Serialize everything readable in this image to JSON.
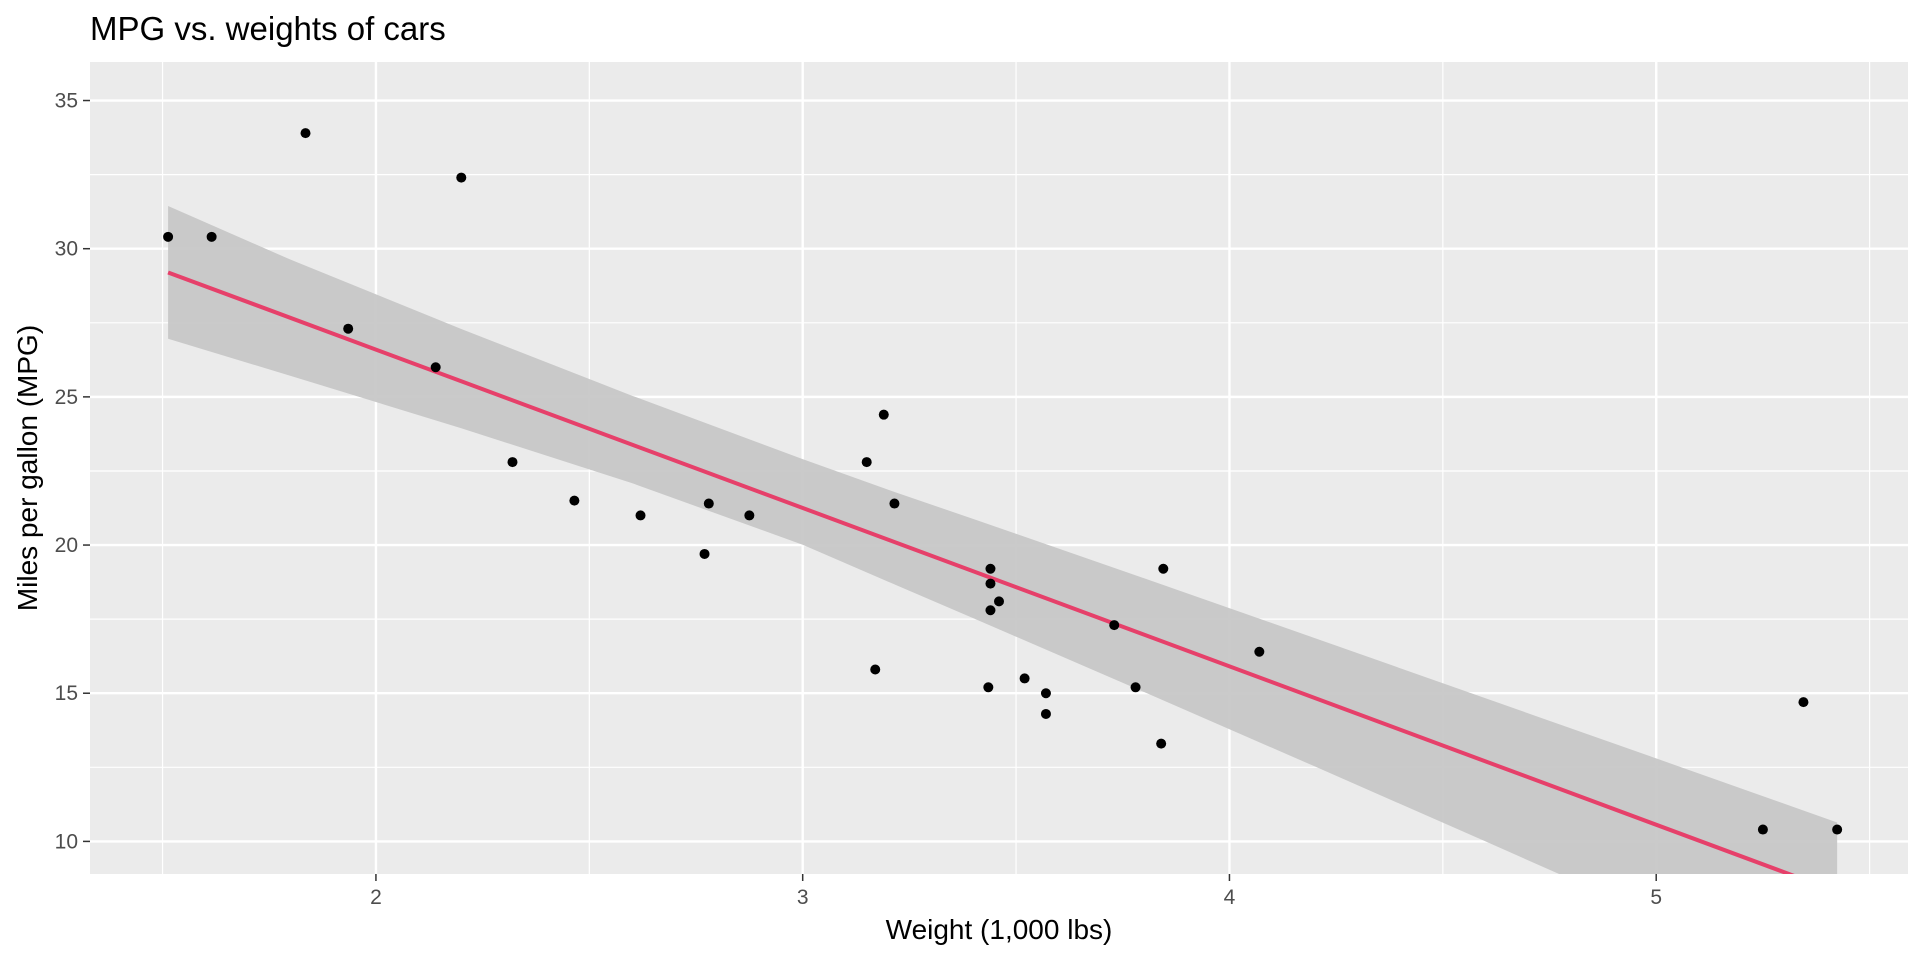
{
  "chart_data": {
    "type": "scatter",
    "title": "MPG vs. weights of cars",
    "xlabel": "Weight (1,000 lbs)",
    "ylabel": "Miles per gallon (MPG)",
    "xlim": [
      1.33,
      5.59
    ],
    "ylim": [
      8.9,
      36.3
    ],
    "x_ticks": [
      2,
      3,
      4,
      5
    ],
    "y_ticks": [
      10,
      15,
      20,
      25,
      30,
      35
    ],
    "x_tick_labels": [
      "2",
      "3",
      "4",
      "5"
    ],
    "y_tick_labels": [
      "10",
      "15",
      "20",
      "25",
      "30",
      "35"
    ],
    "x_minor_ticks": [
      1.5,
      2.5,
      3.5,
      4.5,
      5.5
    ],
    "y_minor_ticks": [
      12.5,
      17.5,
      22.5,
      27.5,
      32.5
    ],
    "grid": true,
    "legend": "none",
    "series": [
      {
        "type": "scatter",
        "x": [
          2.62,
          2.875,
          2.32,
          3.215,
          3.44,
          3.46,
          3.57,
          3.19,
          3.15,
          3.44,
          3.44,
          4.07,
          3.73,
          3.78,
          5.25,
          5.424,
          5.345,
          2.2,
          1.615,
          1.835,
          2.465,
          3.52,
          3.435,
          3.84,
          3.845,
          1.935,
          2.14,
          1.513,
          3.17,
          2.77,
          3.57,
          2.78
        ],
        "y": [
          21.0,
          21.0,
          22.8,
          21.4,
          18.7,
          18.1,
          14.3,
          24.4,
          22.8,
          19.2,
          17.8,
          16.4,
          17.3,
          15.2,
          10.4,
          10.4,
          14.7,
          32.4,
          30.4,
          33.9,
          21.5,
          15.5,
          15.2,
          13.3,
          19.2,
          27.3,
          26.0,
          30.4,
          15.8,
          19.7,
          15.0,
          21.4
        ]
      },
      {
        "type": "line",
        "method": "lm",
        "x": [
          1.513,
          5.424
        ],
        "y": [
          29.199,
          8.296
        ]
      },
      {
        "type": "area",
        "band": "confidence interval",
        "x": [
          1.513,
          1.8,
          2.2,
          2.6,
          3.0,
          3.217,
          3.4,
          3.8,
          4.2,
          4.6,
          5.0,
          5.424
        ],
        "lower": [
          26.96,
          25.71,
          23.94,
          22.09,
          20.01,
          18.66,
          17.53,
          15.04,
          12.53,
          10.0,
          7.45,
          4.73
        ],
        "upper": [
          31.44,
          29.63,
          27.29,
          25.04,
          22.9,
          21.78,
          20.88,
          18.88,
          16.86,
          14.83,
          12.8,
          10.64
        ]
      }
    ]
  },
  "colors": {
    "panel_background": "#ebebeb",
    "grid_line": "#ffffff",
    "point": "#000000",
    "regression_line": "#e6406a",
    "confidence_band": "#c6c6c6",
    "tick_label": "#4d4d4d",
    "tick_mark": "#333333"
  }
}
